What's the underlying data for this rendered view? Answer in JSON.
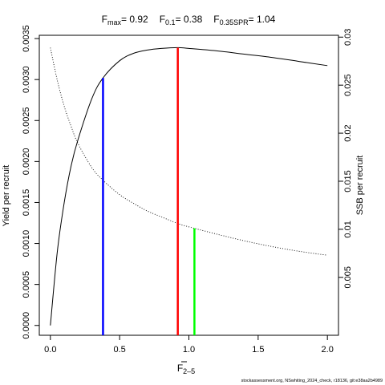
{
  "chart_data": {
    "type": "line",
    "title": {
      "fmax_label": "F",
      "fmax_sub": "max",
      "fmax_value": "= 0.92",
      "f01_label": "F",
      "f01_sub": "0.1",
      "f01_value": "= 0.38",
      "fspr_label": "F",
      "fspr_sub": "0.35SPR",
      "fspr_value": "= 1.04"
    },
    "xlabel": {
      "text": "F",
      "sub": "2–5"
    },
    "ylabel_left": "Yield per recruit",
    "ylabel_right": "SSB per recruit",
    "xlim": [
      -0.08,
      2.08
    ],
    "ylim_left": [
      -0.00012,
      0.00354
    ],
    "ylim_right": [
      -0.00103,
      0.03019
    ],
    "x_ticks": [
      {
        "value": 0.0,
        "label": "0.0"
      },
      {
        "value": 0.5,
        "label": "0.5"
      },
      {
        "value": 1.0,
        "label": "1.0"
      },
      {
        "value": 1.5,
        "label": "1.5"
      },
      {
        "value": 2.0,
        "label": "2.0"
      }
    ],
    "y_ticks_left": [
      {
        "value": 0.0,
        "label": "0.0000"
      },
      {
        "value": 0.0005,
        "label": "0.0005"
      },
      {
        "value": 0.001,
        "label": "0.0010"
      },
      {
        "value": 0.0015,
        "label": "0.0015"
      },
      {
        "value": 0.002,
        "label": "0.0020"
      },
      {
        "value": 0.0025,
        "label": "0.0025"
      },
      {
        "value": 0.003,
        "label": "0.0030"
      },
      {
        "value": 0.0035,
        "label": "0.0035"
      }
    ],
    "y_ticks_right": [
      {
        "value": 0.005,
        "label": "0.005"
      },
      {
        "value": 0.01,
        "label": "0.01"
      },
      {
        "value": 0.015,
        "label": "0.015"
      },
      {
        "value": 0.02,
        "label": "0.02"
      },
      {
        "value": 0.025,
        "label": "0.025"
      },
      {
        "value": 0.03,
        "label": "0.03"
      }
    ],
    "series": [
      {
        "axis": "left",
        "style": "solid",
        "color": "#000000",
        "x": [
          0.0,
          0.05,
          0.1,
          0.15,
          0.2,
          0.3,
          0.38,
          0.5,
          0.6,
          0.7,
          0.8,
          0.92,
          1.0,
          1.2,
          1.4,
          1.6,
          1.8,
          2.0
        ],
        "y": [
          0.0,
          0.0009,
          0.0015,
          0.00195,
          0.00227,
          0.00277,
          0.00302,
          0.00323,
          0.00332,
          0.00336,
          0.00338,
          0.00339,
          0.00338,
          0.00335,
          0.00331,
          0.00327,
          0.00322,
          0.00317
        ]
      },
      {
        "axis": "right",
        "style": "dotted",
        "color": "#000000",
        "x": [
          0.0,
          0.05,
          0.1,
          0.15,
          0.2,
          0.3,
          0.38,
          0.5,
          0.6,
          0.7,
          0.8,
          0.92,
          1.0,
          1.04,
          1.2,
          1.4,
          1.6,
          1.8,
          2.0
        ],
        "y": [
          0.0289,
          0.0255,
          0.0228,
          0.0207,
          0.0189,
          0.0164,
          0.0151,
          0.0136,
          0.0127,
          0.0119,
          0.0113,
          0.0106,
          0.01025,
          0.0101,
          0.0095,
          0.0088,
          0.0082,
          0.0077,
          0.0073
        ]
      }
    ],
    "reference_lines": [
      {
        "name": "F0.1",
        "x": 0.38,
        "axis": "left",
        "y_top": 0.00302,
        "color": "#0000ff"
      },
      {
        "name": "Fmax",
        "x": 0.92,
        "axis": "left",
        "y_top": 0.00339,
        "color": "#ff0000"
      },
      {
        "name": "F0.35SPR",
        "x": 1.04,
        "axis": "right",
        "y_top": 0.0101,
        "color": "#00ff00"
      }
    ],
    "footnote": "stockassessment.org, NSwhiting_2024_check, r18136, git:e38aa2b4989"
  }
}
